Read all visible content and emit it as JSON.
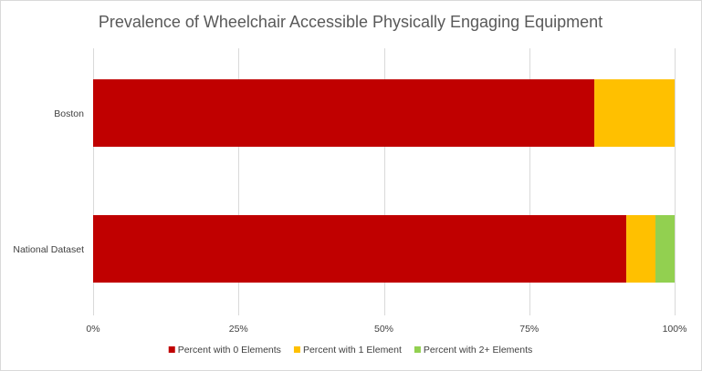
{
  "chart_data": {
    "type": "bar",
    "orientation": "horizontal",
    "stacked": true,
    "title": "Prevalence of Wheelchair Accessible Physically Engaging Equipment",
    "xlabel": "",
    "ylabel": "",
    "categories": [
      "Boston",
      "National Dataset"
    ],
    "series": [
      {
        "name": "Percent with 0 Elements",
        "color": "#c00000",
        "values": [
          0.862,
          0.917
        ]
      },
      {
        "name": "Percent with 1 Element",
        "color": "#ffc000",
        "values": [
          0.138,
          0.05
        ]
      },
      {
        "name": "Percent with 2+ Elements",
        "color": "#92d050",
        "values": [
          0.0,
          0.033
        ]
      }
    ],
    "xlim": [
      0,
      1
    ],
    "x_ticks": [
      "0%",
      "25%",
      "50%",
      "75%",
      "100%"
    ],
    "x_tick_values": [
      0,
      0.25,
      0.5,
      0.75,
      1
    ],
    "grid": "vertical",
    "legend_position": "bottom"
  }
}
